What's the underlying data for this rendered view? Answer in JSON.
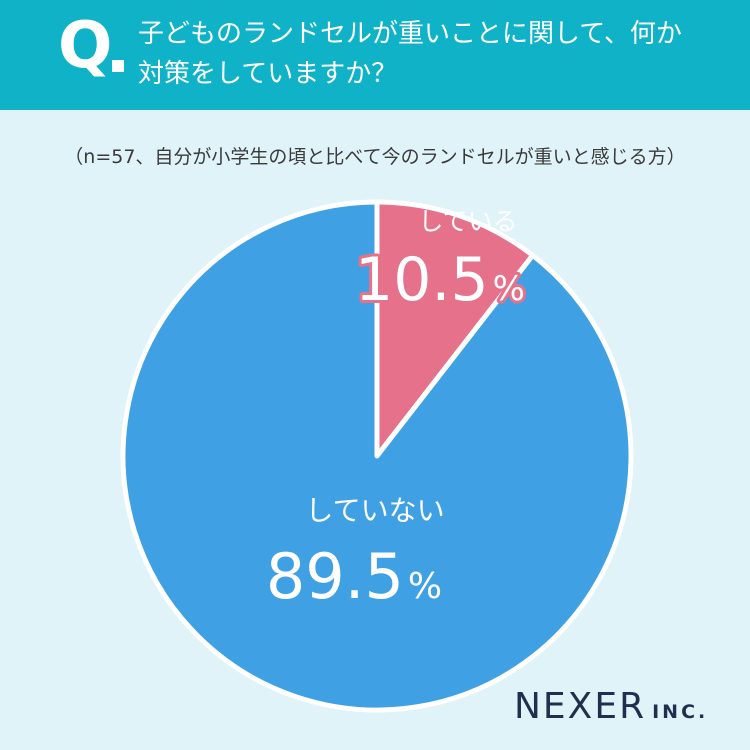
{
  "header": {
    "q_mark": "Q",
    "question_line1": "子どものランドセルが重いことに関して、何か",
    "question_line2": "対策をしていますか？"
  },
  "note": "（n=57、自分が小学生の頃と比べて今のランドセルが重いと感じる方）",
  "logo": {
    "main": "NEXER",
    "sub": "INC."
  },
  "colors": {
    "header": "#0fb2c6",
    "background": "#dff3f8",
    "slice_yes": "#e5728a",
    "slice_no": "#3fa1e4"
  },
  "chart_data": {
    "type": "pie",
    "title": "",
    "slices": [
      {
        "label": "している",
        "value": 10.5,
        "display": "10.5",
        "unit": "%",
        "color": "#e5728a"
      },
      {
        "label": "していない",
        "value": 89.5,
        "display": "89.5",
        "unit": "%",
        "color": "#3fa1e4"
      }
    ]
  }
}
